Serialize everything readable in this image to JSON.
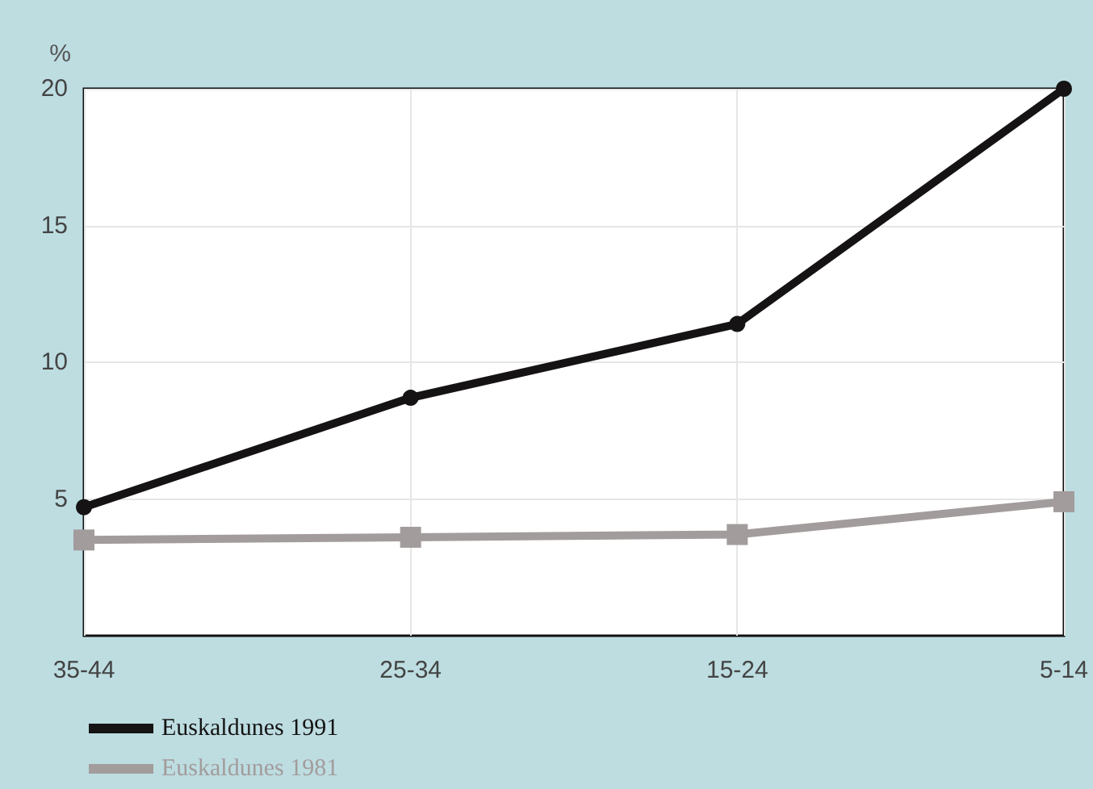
{
  "chart_data": {
    "type": "line",
    "ylabel": "%",
    "categories": [
      "35-44",
      "25-34",
      "15-24",
      "5-14"
    ],
    "series": [
      {
        "name": "Euskaldunes 1991",
        "color": "#151313",
        "marker": "circle",
        "values": [
          4.7,
          8.7,
          11.4,
          20
        ]
      },
      {
        "name": "Euskaldunes 1981",
        "color": "#a39c9c",
        "marker": "square",
        "values": [
          3.5,
          3.6,
          3.7,
          4.9
        ]
      }
    ],
    "ylim": [
      0,
      20
    ],
    "yticks": [
      5,
      10,
      15,
      20
    ],
    "grid": true,
    "legend": "bottom left",
    "line_style": "solid"
  }
}
